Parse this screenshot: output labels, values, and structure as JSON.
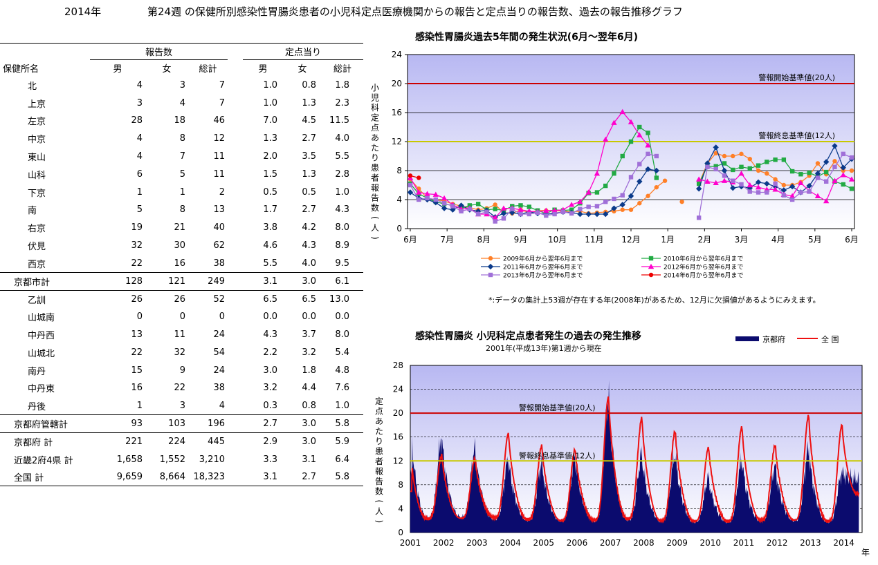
{
  "header": {
    "year": "2014年",
    "title": "第24週 の保健所別感染性胃腸炎患者の小児科定点医療機関からの報告と定点当りの報告数、過去の報告推移グラフ"
  },
  "table": {
    "group_reports": "報告数",
    "group_per_site": "定点当り",
    "col_name": "保健所名",
    "col_male": "男",
    "col_female": "女",
    "col_total": "総計",
    "rows": [
      {
        "name": "北",
        "level": 2,
        "m": "4",
        "f": "3",
        "t": "7",
        "pm": "1.0",
        "pf": "0.8",
        "pt": "1.8"
      },
      {
        "name": "上京",
        "level": 2,
        "m": "3",
        "f": "4",
        "t": "7",
        "pm": "1.0",
        "pf": "1.3",
        "pt": "2.3"
      },
      {
        "name": "左京",
        "level": 2,
        "m": "28",
        "f": "18",
        "t": "46",
        "pm": "7.0",
        "pf": "4.5",
        "pt": "11.5"
      },
      {
        "name": "中京",
        "level": 2,
        "m": "4",
        "f": "8",
        "t": "12",
        "pm": "1.3",
        "pf": "2.7",
        "pt": "4.0"
      },
      {
        "name": "東山",
        "level": 2,
        "m": "4",
        "f": "7",
        "t": "11",
        "pm": "2.0",
        "pf": "3.5",
        "pt": "5.5"
      },
      {
        "name": "山科",
        "level": 2,
        "m": "6",
        "f": "5",
        "t": "11",
        "pm": "1.5",
        "pf": "1.3",
        "pt": "2.8"
      },
      {
        "name": "下京",
        "level": 2,
        "m": "1",
        "f": "1",
        "t": "2",
        "pm": "0.5",
        "pf": "0.5",
        "pt": "1.0"
      },
      {
        "name": "南",
        "level": 2,
        "m": "5",
        "f": "8",
        "t": "13",
        "pm": "1.7",
        "pf": "2.7",
        "pt": "4.3"
      },
      {
        "name": "右京",
        "level": 2,
        "m": "19",
        "f": "21",
        "t": "40",
        "pm": "3.8",
        "pf": "4.2",
        "pt": "8.0"
      },
      {
        "name": "伏見",
        "level": 2,
        "m": "32",
        "f": "30",
        "t": "62",
        "pm": "4.6",
        "pf": "4.3",
        "pt": "8.9"
      },
      {
        "name": "西京",
        "level": 2,
        "m": "22",
        "f": "16",
        "t": "38",
        "pm": "5.5",
        "pf": "4.0",
        "pt": "9.5"
      },
      {
        "name": "京都市計",
        "level": 1,
        "m": "128",
        "f": "121",
        "t": "249",
        "pm": "3.1",
        "pf": "3.0",
        "pt": "6.1",
        "rule": "both"
      },
      {
        "name": "乙訓",
        "level": 2,
        "m": "26",
        "f": "26",
        "t": "52",
        "pm": "6.5",
        "pf": "6.5",
        "pt": "13.0"
      },
      {
        "name": "山城南",
        "level": 2,
        "m": "0",
        "f": "0",
        "t": "0",
        "pm": "0.0",
        "pf": "0.0",
        "pt": "0.0"
      },
      {
        "name": "中丹西",
        "level": 2,
        "m": "13",
        "f": "11",
        "t": "24",
        "pm": "4.3",
        "pf": "3.7",
        "pt": "8.0"
      },
      {
        "name": "山城北",
        "level": 2,
        "m": "22",
        "f": "32",
        "t": "54",
        "pm": "2.2",
        "pf": "3.2",
        "pt": "5.4"
      },
      {
        "name": "南丹",
        "level": 2,
        "m": "15",
        "f": "9",
        "t": "24",
        "pm": "3.0",
        "pf": "1.8",
        "pt": "4.8"
      },
      {
        "name": "中丹東",
        "level": 2,
        "m": "16",
        "f": "22",
        "t": "38",
        "pm": "3.2",
        "pf": "4.4",
        "pt": "7.6"
      },
      {
        "name": "丹後",
        "level": 2,
        "m": "1",
        "f": "3",
        "t": "4",
        "pm": "0.3",
        "pf": "0.8",
        "pt": "1.0"
      },
      {
        "name": "京都府管轄計",
        "level": 1,
        "m": "93",
        "f": "103",
        "t": "196",
        "pm": "2.7",
        "pf": "3.0",
        "pt": "5.8",
        "rule": "both"
      },
      {
        "name": "京都府 計",
        "level": 1,
        "m": "221",
        "f": "224",
        "t": "445",
        "pm": "2.9",
        "pf": "3.0",
        "pt": "5.9"
      },
      {
        "name": "近畿2府4県 計",
        "level": 1,
        "m": "1,658",
        "f": "1,552",
        "t": "3,210",
        "pm": "3.3",
        "pf": "3.1",
        "pt": "6.4"
      },
      {
        "name": "全国 計",
        "level": 1,
        "m": "9,659",
        "f": "8,664",
        "t": "18,323",
        "pm": "3.1",
        "pf": "2.7",
        "pt": "5.8",
        "rule": "bottom"
      }
    ]
  },
  "chart_data": [
    {
      "type": "line",
      "title": "感染性胃腸炎過去5年間の発生状況(6月～翌年6月)",
      "ylabel": "小児科定点あたり患者報告数(人)",
      "ylim": [
        0,
        24
      ],
      "yticks": [
        0,
        4,
        8,
        12,
        16,
        20,
        24
      ],
      "month_labels": [
        "6月",
        "7月",
        "8月",
        "9月",
        "10月",
        "11月",
        "12月",
        "1月",
        "2月",
        "3月",
        "4月",
        "5月",
        "6月"
      ],
      "week_count": 53,
      "thresholds": [
        {
          "label": "警報開始基準値(20人)",
          "value": 20,
          "color": "#cc0000"
        },
        {
          "label": "警報終息基準値(12人)",
          "value": 12,
          "color": "#c8c800"
        }
      ],
      "note": "*:データの集計上53週が存在する年(2008年)があるため、12月に欠損値があるようにみえます。",
      "legend_position": "bottom",
      "grid": true,
      "series": [
        {
          "name": "2009年6月から翌年6月まで",
          "color": "#ff7f27",
          "marker": "circle",
          "values": [
            6.8,
            5.5,
            4.2,
            4.0,
            3.8,
            3.4,
            3.1,
            2.9,
            2.6,
            2.8,
            3.3,
            2.2,
            2.1,
            2.6,
            2.2,
            2.5,
            2.5,
            2.5,
            2.4,
            2.3,
            2.4,
            2.1,
            2.2,
            2.3,
            2.4,
            2.6,
            2.6,
            3.5,
            4.5,
            5.7,
            6.6,
            null,
            3.7,
            null,
            6.2,
            9.0,
            10.4,
            10.0,
            10.0,
            10.3,
            9.6,
            8.0,
            7.6,
            6.8,
            6.0,
            6.0,
            6.4,
            7.3,
            9.0,
            7.5,
            9.3,
            8.0,
            8.0
          ]
        },
        {
          "name": "2010年6月から翌年6月まで",
          "color": "#22aa44",
          "marker": "square",
          "values": [
            6.2,
            4.8,
            4.2,
            3.7,
            3.4,
            3.2,
            2.8,
            3.2,
            3.4,
            2.6,
            2.7,
            2.5,
            3.1,
            3.2,
            3.0,
            2.5,
            2.1,
            2.6,
            2.5,
            2.6,
            3.5,
            4.9,
            5.0,
            5.9,
            7.6,
            10.0,
            12.0,
            14.0,
            13.2,
            7.0,
            null,
            null,
            null,
            null,
            6.2,
            8.6,
            8.6,
            9.0,
            8.1,
            8.5,
            8.3,
            8.7,
            9.2,
            9.5,
            9.5,
            7.9,
            7.5,
            7.7,
            7.2,
            7.8,
            6.5,
            6.1,
            5.5
          ]
        },
        {
          "name": "2011年6月から翌年6月まで",
          "color": "#0a3a8a",
          "marker": "diamond",
          "values": [
            5.0,
            4.2,
            4.0,
            3.6,
            2.8,
            2.6,
            3.2,
            2.6,
            2.4,
            2.5,
            1.6,
            2.1,
            2.2,
            2.0,
            2.3,
            2.1,
            2.0,
            2.1,
            2.3,
            2.2,
            2.0,
            2.0,
            2.0,
            2.0,
            2.8,
            3.3,
            4.5,
            6.5,
            8.2,
            8.0,
            null,
            null,
            null,
            null,
            5.5,
            9.0,
            11.2,
            8.0,
            5.6,
            5.8,
            5.6,
            6.4,
            6.2,
            5.8,
            5.3,
            5.8,
            5.0,
            5.9,
            7.6,
            9.2,
            11.4,
            8.4,
            9.6
          ]
        },
        {
          "name": "2012年6月から翌年6月まで",
          "color": "#ff00cc",
          "marker": "triangle",
          "values": [
            7.0,
            5.0,
            4.8,
            4.7,
            4.2,
            3.3,
            2.7,
            2.8,
            2.0,
            2.0,
            1.5,
            2.8,
            2.8,
            2.6,
            2.4,
            2.3,
            2.5,
            2.5,
            2.6,
            3.3,
            3.7,
            5.0,
            7.6,
            12.3,
            14.6,
            16.1,
            14.7,
            12.9,
            11.5,
            null,
            null,
            null,
            null,
            null,
            6.8,
            6.5,
            6.3,
            6.6,
            6.4,
            7.6,
            6.0,
            5.7,
            5.4,
            5.4,
            4.7,
            4.5,
            6.3,
            5.2,
            4.5,
            3.8,
            6.6,
            7.4,
            6.8
          ]
        },
        {
          "name": "2013年6月から翌年6月まで",
          "color": "#a070d8",
          "marker": "square",
          "values": [
            6.0,
            4.0,
            4.2,
            4.0,
            3.5,
            3.1,
            2.4,
            2.7,
            2.0,
            2.3,
            1.0,
            1.4,
            2.7,
            2.0,
            2.0,
            2.2,
            1.8,
            2.0,
            2.3,
            2.1,
            2.7,
            3.0,
            3.1,
            3.7,
            4.1,
            4.6,
            7.1,
            8.9,
            10.3,
            10.0,
            null,
            null,
            null,
            null,
            1.5,
            8.5,
            8.2,
            7.3,
            6.6,
            6.1,
            5.1,
            5.0,
            5.0,
            6.2,
            4.6,
            4.0,
            5.0,
            5.1,
            7.0,
            6.5,
            8.5,
            10.3,
            9.8
          ]
        },
        {
          "name": "2014年6月から翌年6月まで",
          "color": "#ee0000",
          "marker": "circle",
          "values": [
            7.3,
            7.0,
            null,
            null,
            null,
            null,
            null,
            null,
            null,
            null,
            null,
            null,
            null,
            null,
            null,
            null,
            null,
            null,
            null,
            null,
            null,
            null,
            null,
            null,
            null,
            null,
            null,
            null,
            null,
            null,
            null,
            null,
            null,
            null,
            null,
            null,
            null,
            null,
            null,
            null,
            null,
            null,
            null,
            null,
            null,
            null,
            null,
            null,
            null,
            null,
            null,
            null,
            null
          ]
        }
      ]
    },
    {
      "type": "area",
      "title": "感染性胃腸炎 小児科定点患者発生の過去の発生推移",
      "subtitle": "2001年(平成13年)第1週から現在",
      "ylabel": "定点あたり患者報告数(人)",
      "xlabel": "年",
      "ylim": [
        0,
        28
      ],
      "yticks": [
        0,
        4,
        8,
        12,
        16,
        20,
        24,
        28
      ],
      "x_years": [
        "2001",
        "2002",
        "2003",
        "2004",
        "2005",
        "2006",
        "2007",
        "2008",
        "2009",
        "2010",
        "2011",
        "2012",
        "2013",
        "2014"
      ],
      "thresholds": [
        {
          "label": "警報開始基準値(20人)",
          "value": 20,
          "color": "#cc0000"
        },
        {
          "label": "警報終息基準値(12人)",
          "value": 12,
          "color": "#c8c800"
        }
      ],
      "legend_position": "top-right",
      "series": [
        {
          "name": "京都府",
          "color": "#0b0b6e",
          "style": "area",
          "peaks": [
            [
              0.05,
              15.6
            ],
            [
              0.95,
              15.8
            ],
            [
              1.95,
              14.0
            ],
            [
              2.95,
              12.4
            ],
            [
              3.95,
              11.7
            ],
            [
              4.95,
              12.7
            ],
            [
              5.95,
              22.8
            ],
            [
              6.95,
              13.0
            ],
            [
              7.95,
              13.2
            ],
            [
              8.95,
              9.2
            ],
            [
              9.95,
              12.2
            ],
            [
              10.95,
              11.2
            ],
            [
              11.95,
              14.1
            ],
            [
              12.95,
              10.0
            ],
            [
              13.4,
              9.0
            ]
          ],
          "troughs": [
            [
              0.5,
              2.5
            ],
            [
              1.5,
              2.6
            ],
            [
              2.5,
              2.3
            ],
            [
              3.5,
              2.1
            ],
            [
              4.5,
              2.0
            ],
            [
              5.5,
              2.0
            ],
            [
              6.5,
              2.2
            ],
            [
              7.5,
              2.0
            ],
            [
              8.5,
              1.8
            ],
            [
              9.5,
              1.8
            ],
            [
              10.5,
              2.0
            ],
            [
              11.5,
              2.0
            ],
            [
              12.5,
              1.8
            ]
          ]
        },
        {
          "name": "全 国",
          "color": "#ee1111",
          "style": "line",
          "peaks": [
            [
              0.05,
              11.5
            ],
            [
              0.95,
              13.0
            ],
            [
              1.95,
              12.5
            ],
            [
              2.95,
              16.7
            ],
            [
              3.95,
              14.6
            ],
            [
              4.95,
              14.0
            ],
            [
              5.95,
              22.8
            ],
            [
              6.95,
              19.3
            ],
            [
              7.95,
              17.1
            ],
            [
              8.95,
              14.3
            ],
            [
              9.95,
              17.8
            ],
            [
              10.95,
              14.7
            ],
            [
              11.95,
              19.7
            ],
            [
              12.95,
              18.1
            ],
            [
              13.4,
              6.5
            ]
          ],
          "troughs": [
            [
              0.5,
              2.3
            ],
            [
              1.5,
              2.4
            ],
            [
              2.5,
              2.5
            ],
            [
              3.5,
              2.2
            ],
            [
              4.5,
              2.0
            ],
            [
              5.5,
              2.1
            ],
            [
              6.5,
              2.3
            ],
            [
              7.5,
              2.0
            ],
            [
              8.5,
              1.9
            ],
            [
              9.5,
              1.9
            ],
            [
              10.5,
              2.1
            ],
            [
              11.5,
              2.1
            ],
            [
              12.5,
              1.9
            ]
          ]
        }
      ]
    }
  ]
}
